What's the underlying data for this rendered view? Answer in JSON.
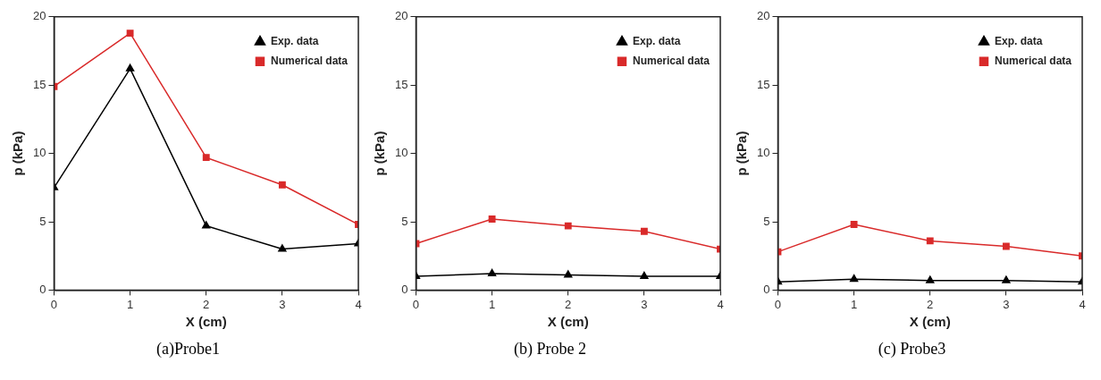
{
  "chart_data": [
    {
      "type": "line",
      "xlabel": "X (cm)",
      "ylabel": "p (kPa)",
      "annotations": [
        "(a)Probe1"
      ],
      "x": [
        0,
        1,
        2,
        3,
        4
      ],
      "xlim": [
        0,
        4
      ],
      "xticks": [
        0,
        1,
        2,
        3,
        4
      ],
      "ylim": [
        0,
        20
      ],
      "yticks": [
        0,
        5,
        10,
        15,
        20
      ],
      "grid": false,
      "legend": "top right",
      "line_style": "solid",
      "series": [
        {
          "name": "Exp. data",
          "color": "#000000",
          "marker": "triangle",
          "values": [
            7.5,
            16.2,
            4.7,
            3.0,
            3.4
          ]
        },
        {
          "name": "Numerical data",
          "color": "#d92a2a",
          "marker": "square",
          "values": [
            14.9,
            18.8,
            9.7,
            7.7,
            4.8
          ]
        }
      ]
    },
    {
      "type": "line",
      "xlabel": "X (cm)",
      "ylabel": "p (kPa)",
      "annotations": [
        "(b) Probe 2"
      ],
      "x": [
        0,
        1,
        2,
        3,
        4
      ],
      "xlim": [
        0,
        4
      ],
      "xticks": [
        0,
        1,
        2,
        3,
        4
      ],
      "ylim": [
        0,
        20
      ],
      "yticks": [
        0,
        5,
        10,
        15,
        20
      ],
      "grid": false,
      "legend": "top right",
      "line_style": "solid",
      "series": [
        {
          "name": "Exp. data",
          "color": "#000000",
          "marker": "triangle",
          "values": [
            1.0,
            1.2,
            1.1,
            1.0,
            1.0
          ]
        },
        {
          "name": "Numerical data",
          "color": "#d92a2a",
          "marker": "square",
          "values": [
            3.4,
            5.2,
            4.7,
            4.3,
            3.0
          ]
        }
      ]
    },
    {
      "type": "line",
      "xlabel": "X (cm)",
      "ylabel": "p (kPa)",
      "annotations": [
        "(c) Probe3"
      ],
      "x": [
        0,
        1,
        2,
        3,
        4
      ],
      "xlim": [
        0,
        4
      ],
      "xticks": [
        0,
        1,
        2,
        3,
        4
      ],
      "ylim": [
        0,
        20
      ],
      "yticks": [
        0,
        5,
        10,
        15,
        20
      ],
      "grid": false,
      "legend": "top right",
      "line_style": "solid",
      "series": [
        {
          "name": "Exp. data",
          "color": "#000000",
          "marker": "triangle",
          "values": [
            0.6,
            0.8,
            0.7,
            0.7,
            0.6
          ]
        },
        {
          "name": "Numerical data",
          "color": "#d92a2a",
          "marker": "square",
          "values": [
            2.8,
            4.8,
            3.6,
            3.2,
            2.5
          ]
        }
      ]
    }
  ]
}
